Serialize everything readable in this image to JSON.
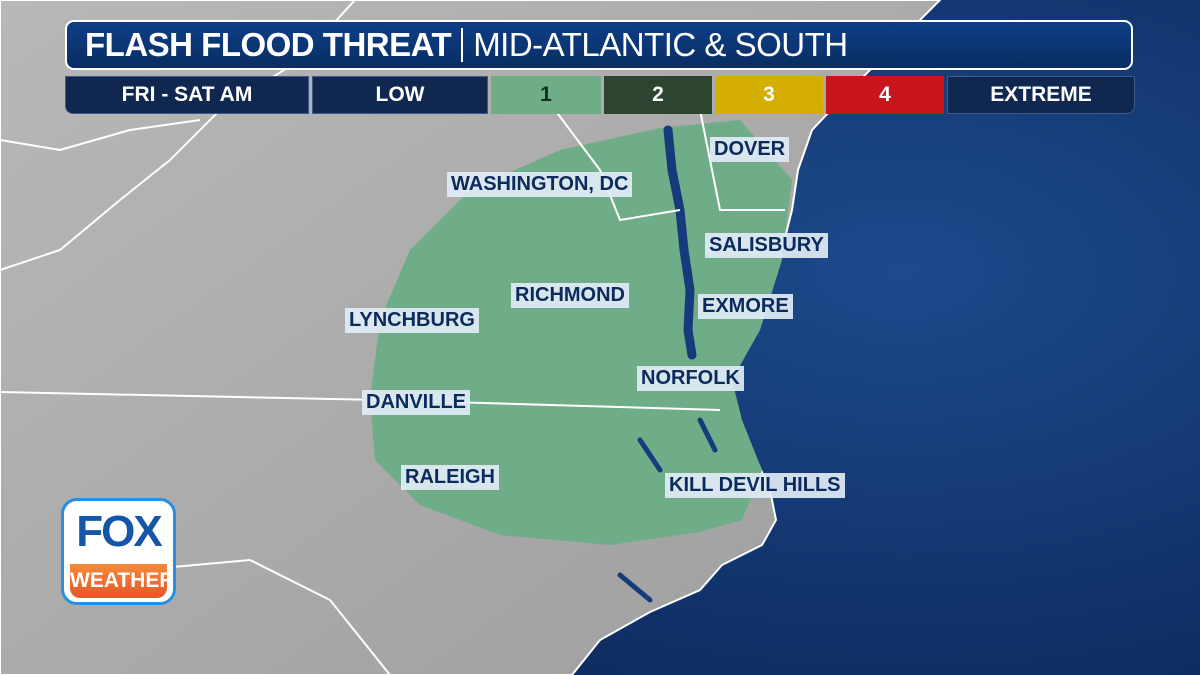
{
  "header": {
    "title": "FLASH FLOOD THREAT",
    "region": "MID-ATLANTIC & SOUTH"
  },
  "legend": {
    "timeframe": "FRI - SAT AM",
    "low_label": "LOW",
    "levels": [
      {
        "label": "1",
        "color": "#6fac88",
        "text_color": "#10301c"
      },
      {
        "label": "2",
        "color": "#2d4530",
        "text_color": "#ffffff"
      },
      {
        "label": "3",
        "color": "#d4ae00",
        "text_color": "#ffffff"
      },
      {
        "label": "4",
        "color": "#c8141c",
        "text_color": "#ffffff"
      }
    ],
    "high_label": "EXTREME"
  },
  "map": {
    "threat_level_shown": "1",
    "colors": {
      "land": "#a9a9a9",
      "ocean": "#163b7a",
      "threat": "#6fac88"
    },
    "cities": [
      "DOVER",
      "WASHINGTON, DC",
      "SALISBURY",
      "RICHMOND",
      "EXMORE",
      "LYNCHBURG",
      "NORFOLK",
      "DANVILLE",
      "RALEIGH",
      "KILL DEVIL HILLS"
    ]
  },
  "logo": {
    "top": "FOX",
    "bottom": "WEATHER"
  }
}
